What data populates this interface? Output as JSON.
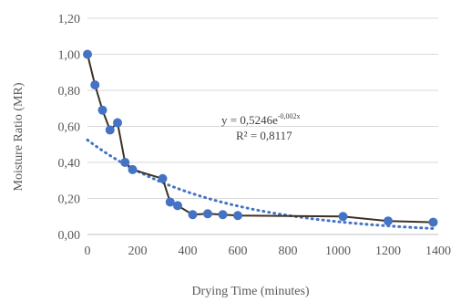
{
  "chart_data": {
    "type": "scatter",
    "title": "",
    "xlabel": "Drying Time (minutes)",
    "ylabel": "Moisture Ratio (MR)",
    "xlim": [
      0,
      1400
    ],
    "ylim": [
      0,
      1.2
    ],
    "x_ticks": [
      0,
      200,
      400,
      600,
      800,
      1000,
      1200,
      1400
    ],
    "x_tick_labels": [
      "0",
      "200",
      "400",
      "600",
      "800",
      "1000",
      "1200",
      "1400"
    ],
    "y_ticks": [
      0,
      0.2,
      0.4,
      0.6,
      0.8,
      1.0,
      1.2
    ],
    "y_tick_labels": [
      "0,00",
      "0,20",
      "0,40",
      "0,60",
      "0,80",
      "1,00",
      "1,20"
    ],
    "grid": "horizontal",
    "legend": "none",
    "series": [
      {
        "style": "markers-with-line",
        "marker_color": "#4472C4",
        "line_color": "#3B3222",
        "x": [
          0,
          30,
          60,
          90,
          120,
          150,
          180,
          300,
          330,
          360,
          420,
          480,
          540,
          600,
          1020,
          1200,
          1380
        ],
        "y": [
          1.0,
          0.83,
          0.69,
          0.58,
          0.62,
          0.4,
          0.36,
          0.31,
          0.18,
          0.16,
          0.11,
          0.115,
          0.11,
          0.105,
          0.1,
          0.075,
          0.068
        ]
      }
    ],
    "trendline": {
      "type": "exponential",
      "a": 0.5246,
      "b": -0.002,
      "color": "#4472C4",
      "style": "dotted",
      "x_range": [
        0,
        1380
      ]
    },
    "annotations": {
      "equation_prefix": "y = 0,5246e",
      "equation_exponent": "-0,002x",
      "r_squared": "R² = 0,8117"
    }
  }
}
